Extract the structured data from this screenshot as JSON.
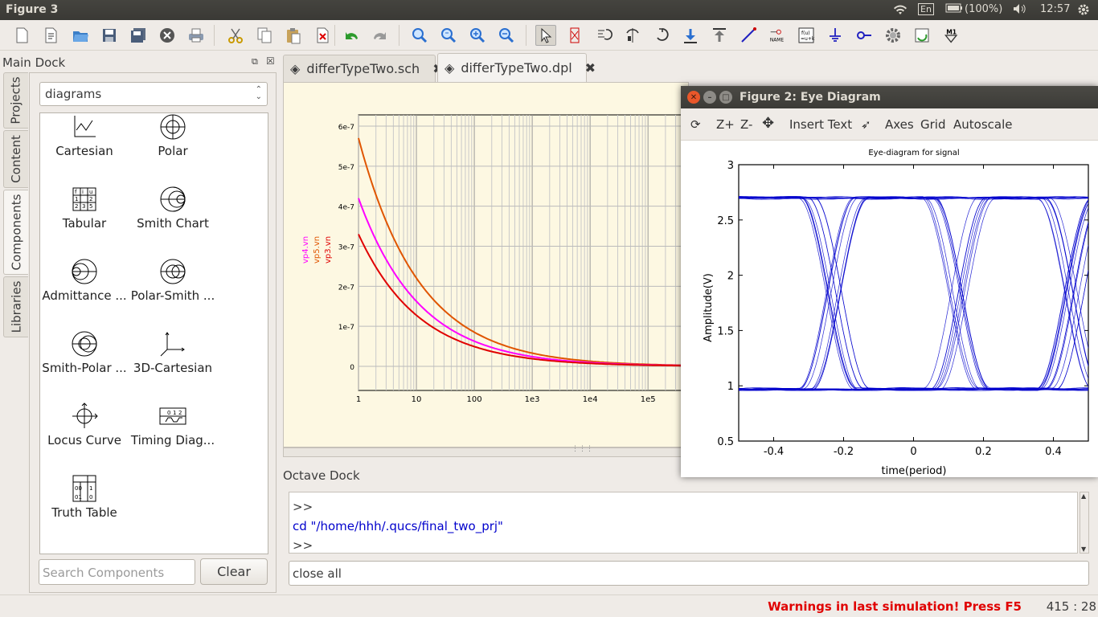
{
  "system_bar": {
    "window_title": "Figure 3",
    "keyboard": "En",
    "battery": "(100%)",
    "clock": "12:57"
  },
  "toolbar": {
    "icons": [
      "new-file",
      "new-text",
      "open",
      "save",
      "save-all",
      "close",
      "print",
      "cut",
      "copy",
      "paste",
      "delete",
      "undo",
      "redo",
      "view-all",
      "view-1-1",
      "zoom-in",
      "zoom-out",
      "select",
      "deactivate",
      "rotate",
      "mirror-x",
      "mirror-y",
      "enter-subcircuit",
      "exit-subcircuit",
      "wire",
      "label",
      "equation",
      "ground",
      "port",
      "simulate",
      "dc-bias",
      "marker"
    ],
    "text_labels": {
      "label_icon": "NAME",
      "equation_icon": "f(u)\n=u+k",
      "marker_icon": "M1"
    }
  },
  "main_dock": {
    "title": "Main Dock",
    "side_tabs": [
      "Projects",
      "Content",
      "Components",
      "Libraries"
    ],
    "active_tab": "Components",
    "category": "diagrams",
    "components": [
      "Cartesian",
      "Polar",
      "Tabular",
      "Smith Chart",
      "Admittance ...",
      "Polar-Smith ...",
      "Smith-Polar ...",
      "3D-Cartesian",
      "Locus Curve",
      "Timing Diag...",
      "Truth Table"
    ],
    "search_placeholder": "Search Components",
    "clear_label": "Clear"
  },
  "doc_tabs": [
    {
      "label": "differTypeTwo.sch",
      "active": false
    },
    {
      "label": "differTypeTwo.dpl",
      "active": true
    }
  ],
  "qucs_plot": {
    "y_ticks": [
      "6e-7",
      "5e-7",
      "4e-7",
      "3e-7",
      "2e-7",
      "1e-7",
      "0"
    ],
    "x_ticks": [
      "1",
      "10",
      "100",
      "1e3",
      "1e4",
      "1e5"
    ],
    "legend": [
      "vp4.vn",
      "vp5.vn",
      "vp3.vn"
    ],
    "colors": {
      "vp4.vn": "#ff00ff",
      "vp5.vn": "#e05500",
      "vp3.vn": "#e00000"
    }
  },
  "octave": {
    "title": "Octave Dock",
    "lines": [
      ">>",
      "cd \"/home/hhh/.qucs/final_two_prj\"",
      ">>"
    ],
    "input": "close all"
  },
  "status": {
    "warning": "Warnings in last simulation! Press F5",
    "position": "415 : 28"
  },
  "figure2": {
    "title": "Figure 2: Eye Diagram",
    "toolbar": [
      "Z+",
      "Z-",
      "Insert Text",
      "Axes",
      "Grid",
      "Autoscale"
    ],
    "chart_data": {
      "type": "line",
      "title": "Eye-diagram for signal",
      "xlabel": "time(period)",
      "ylabel": "Amplitude(V)",
      "xlim": [
        -0.5,
        0.5
      ],
      "ylim": [
        0.5,
        3
      ],
      "x_ticks": [
        "-0.4",
        "-0.2",
        "0",
        "0.2",
        "0.4"
      ],
      "y_ticks": [
        "0.5",
        "1",
        "1.5",
        "2",
        "2.5",
        "3"
      ],
      "low_level": 0.97,
      "high_level": 2.7,
      "crossing_times": [
        -0.3,
        0.05,
        0.38
      ],
      "color": "#0000cc"
    }
  }
}
